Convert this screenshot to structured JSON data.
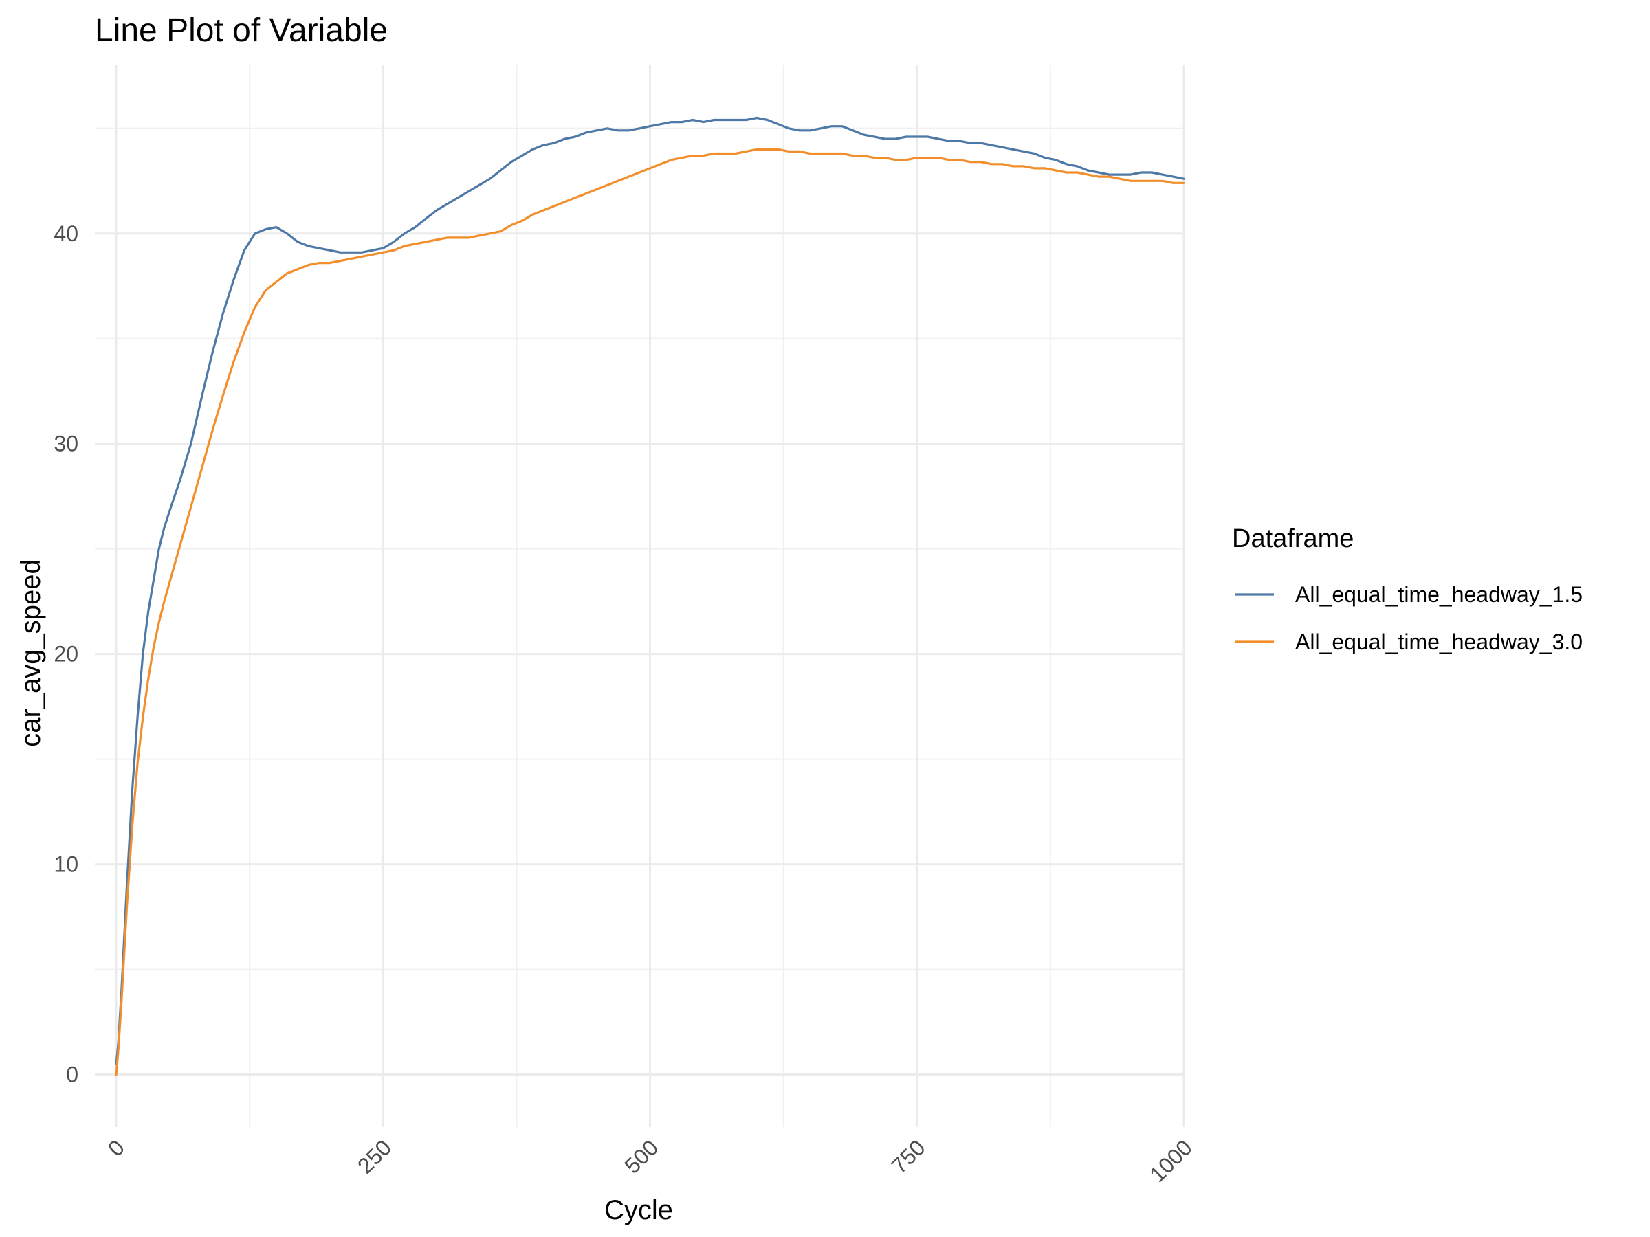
{
  "chart_data": {
    "type": "line",
    "title": "Line Plot of Variable",
    "xlabel": "Cycle",
    "ylabel": "car_avg_speed",
    "xlim": [
      -20,
      1000
    ],
    "ylim": [
      -2.5,
      48
    ],
    "x_ticks": [
      0,
      250,
      500,
      750,
      1000
    ],
    "y_ticks": [
      0,
      10,
      20,
      30,
      40
    ],
    "x_tick_labels": [
      "0",
      "250",
      "500",
      "750",
      "1000"
    ],
    "y_tick_labels": [
      "0",
      "10",
      "20",
      "30",
      "40"
    ],
    "grid": true,
    "legend": {
      "title": "Dataframe",
      "position": "right"
    },
    "series": [
      {
        "name": "All_equal_time_headway_1.5",
        "color": "#4e79a7",
        "x": [
          0,
          2,
          5,
          10,
          15,
          20,
          25,
          30,
          35,
          40,
          45,
          50,
          60,
          70,
          80,
          90,
          100,
          110,
          120,
          130,
          140,
          150,
          160,
          170,
          180,
          190,
          200,
          210,
          220,
          230,
          240,
          250,
          260,
          270,
          280,
          290,
          300,
          310,
          320,
          330,
          340,
          350,
          360,
          370,
          380,
          390,
          400,
          410,
          420,
          430,
          440,
          450,
          460,
          470,
          480,
          490,
          500,
          510,
          520,
          530,
          540,
          550,
          560,
          570,
          580,
          590,
          600,
          610,
          620,
          630,
          640,
          650,
          660,
          670,
          680,
          690,
          700,
          710,
          720,
          730,
          740,
          750,
          760,
          770,
          780,
          790,
          800,
          810,
          820,
          830,
          840,
          850,
          860,
          870,
          880,
          890,
          900,
          910,
          920,
          930,
          940,
          950,
          960,
          970,
          980,
          990,
          1000
        ],
        "y": [
          0.5,
          1.5,
          4.0,
          9.0,
          13.5,
          17.0,
          20.0,
          22.0,
          23.5,
          25.0,
          26.0,
          26.8,
          28.3,
          30.0,
          32.2,
          34.3,
          36.2,
          37.8,
          39.2,
          40.0,
          40.2,
          40.3,
          40.0,
          39.6,
          39.4,
          39.3,
          39.2,
          39.1,
          39.1,
          39.1,
          39.2,
          39.3,
          39.6,
          40.0,
          40.3,
          40.7,
          41.1,
          41.4,
          41.7,
          42.0,
          42.3,
          42.6,
          43.0,
          43.4,
          43.7,
          44.0,
          44.2,
          44.3,
          44.5,
          44.6,
          44.8,
          44.9,
          45.0,
          44.9,
          44.9,
          45.0,
          45.1,
          45.2,
          45.3,
          45.3,
          45.4,
          45.3,
          45.4,
          45.4,
          45.4,
          45.4,
          45.5,
          45.4,
          45.2,
          45.0,
          44.9,
          44.9,
          45.0,
          45.1,
          45.1,
          44.9,
          44.7,
          44.6,
          44.5,
          44.5,
          44.6,
          44.6,
          44.6,
          44.5,
          44.4,
          44.4,
          44.3,
          44.3,
          44.2,
          44.1,
          44.0,
          43.9,
          43.8,
          43.6,
          43.5,
          43.3,
          43.2,
          43.0,
          42.9,
          42.8,
          42.8,
          42.8,
          42.9,
          42.9,
          42.8,
          42.7,
          42.6
        ],
        "note": ""
      },
      {
        "name": "All_equal_time_headway_3.0",
        "color": "#f28e2b",
        "x": [
          0,
          2,
          5,
          10,
          15,
          20,
          25,
          30,
          35,
          40,
          45,
          50,
          60,
          70,
          80,
          90,
          100,
          110,
          120,
          130,
          140,
          150,
          160,
          170,
          180,
          190,
          200,
          210,
          220,
          230,
          240,
          250,
          260,
          270,
          280,
          290,
          300,
          310,
          320,
          330,
          340,
          350,
          360,
          370,
          380,
          390,
          400,
          410,
          420,
          430,
          440,
          450,
          460,
          470,
          480,
          490,
          500,
          510,
          520,
          530,
          540,
          550,
          560,
          570,
          580,
          590,
          600,
          610,
          620,
          630,
          640,
          650,
          660,
          670,
          680,
          690,
          700,
          710,
          720,
          730,
          740,
          750,
          760,
          770,
          780,
          790,
          800,
          810,
          820,
          830,
          840,
          850,
          860,
          870,
          880,
          890,
          900,
          910,
          920,
          930,
          940,
          950,
          960,
          970,
          980,
          990,
          1000
        ],
        "y": [
          0.0,
          1.2,
          3.5,
          8.0,
          11.8,
          14.8,
          17.0,
          18.8,
          20.3,
          21.5,
          22.5,
          23.4,
          25.2,
          27.0,
          28.8,
          30.6,
          32.3,
          33.9,
          35.3,
          36.5,
          37.3,
          37.7,
          38.1,
          38.3,
          38.5,
          38.6,
          38.6,
          38.7,
          38.8,
          38.9,
          39.0,
          39.1,
          39.2,
          39.4,
          39.5,
          39.6,
          39.7,
          39.8,
          39.8,
          39.8,
          39.9,
          40.0,
          40.1,
          40.4,
          40.6,
          40.9,
          41.1,
          41.3,
          41.5,
          41.7,
          41.9,
          42.1,
          42.3,
          42.5,
          42.7,
          42.9,
          43.1,
          43.3,
          43.5,
          43.6,
          43.7,
          43.7,
          43.8,
          43.8,
          43.8,
          43.9,
          44.0,
          44.0,
          44.0,
          43.9,
          43.9,
          43.8,
          43.8,
          43.8,
          43.8,
          43.7,
          43.7,
          43.6,
          43.6,
          43.5,
          43.5,
          43.6,
          43.6,
          43.6,
          43.5,
          43.5,
          43.4,
          43.4,
          43.3,
          43.3,
          43.2,
          43.2,
          43.1,
          43.1,
          43.0,
          42.9,
          42.9,
          42.8,
          42.7,
          42.7,
          42.6,
          42.5,
          42.5,
          42.5,
          42.5,
          42.4,
          42.4
        ],
        "note": ""
      }
    ]
  }
}
